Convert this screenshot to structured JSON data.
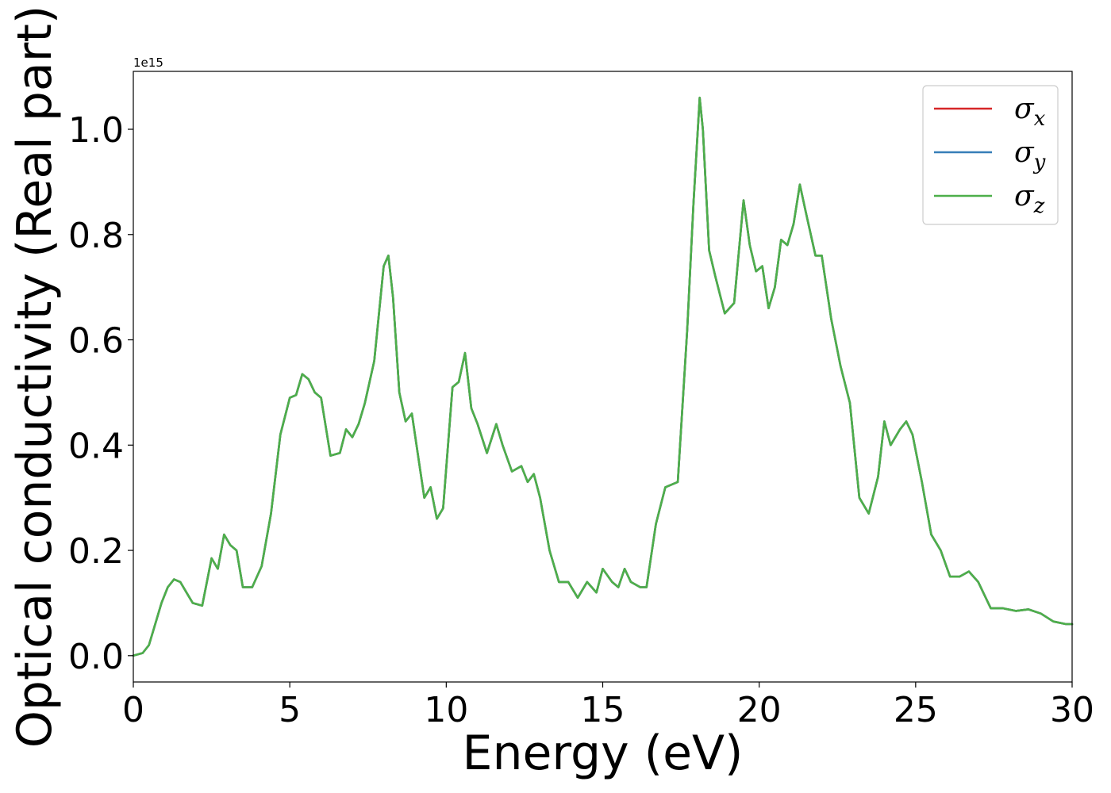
{
  "chart_data": {
    "type": "line",
    "xlabel": "Energy (eV)",
    "ylabel": "Optical conductivity (Real part)",
    "y_offset_label": "1e15",
    "xlim": [
      0,
      30
    ],
    "ylim": [
      -0.05,
      1.11
    ],
    "xticks": [
      0,
      5,
      10,
      15,
      20,
      25,
      30
    ],
    "xtick_labels": [
      "0",
      "5",
      "10",
      "15",
      "20",
      "25",
      "30"
    ],
    "yticks": [
      0.0,
      0.2,
      0.4,
      0.6,
      0.8,
      1.0
    ],
    "ytick_labels": [
      "0.0",
      "0.2",
      "0.4",
      "0.6",
      "0.8",
      "1.0"
    ],
    "grid": false,
    "legend_position": "upper right",
    "x": [
      0,
      0.3,
      0.5,
      0.7,
      0.9,
      1.1,
      1.3,
      1.5,
      1.7,
      1.9,
      2.2,
      2.5,
      2.7,
      2.9,
      3.1,
      3.3,
      3.5,
      3.8,
      4.1,
      4.4,
      4.7,
      5.0,
      5.2,
      5.4,
      5.6,
      5.8,
      6.0,
      6.3,
      6.6,
      6.8,
      7.0,
      7.2,
      7.4,
      7.7,
      8.0,
      8.15,
      8.3,
      8.5,
      8.7,
      8.9,
      9.1,
      9.3,
      9.5,
      9.7,
      9.9,
      10.2,
      10.4,
      10.6,
      10.8,
      11.0,
      11.3,
      11.6,
      11.8,
      12.1,
      12.4,
      12.6,
      12.8,
      13.0,
      13.3,
      13.6,
      13.9,
      14.2,
      14.5,
      14.8,
      15.0,
      15.3,
      15.5,
      15.7,
      15.9,
      16.2,
      16.4,
      16.7,
      17.0,
      17.4,
      17.7,
      17.9,
      18.1,
      18.2,
      18.4,
      18.6,
      18.9,
      19.2,
      19.5,
      19.7,
      19.9,
      20.1,
      20.3,
      20.5,
      20.7,
      20.9,
      21.1,
      21.3,
      21.5,
      21.8,
      22.0,
      22.3,
      22.6,
      22.9,
      23.2,
      23.5,
      23.8,
      24.0,
      24.2,
      24.5,
      24.7,
      24.9,
      25.2,
      25.5,
      25.8,
      26.1,
      26.4,
      26.7,
      27.0,
      27.4,
      27.8,
      28.2,
      28.6,
      29.0,
      29.4,
      29.8,
      30.0
    ],
    "series": [
      {
        "name": "σ_x",
        "color": "#d62728",
        "values": [
          0.0,
          0.005,
          0.02,
          0.06,
          0.1,
          0.13,
          0.145,
          0.14,
          0.12,
          0.1,
          0.095,
          0.185,
          0.165,
          0.23,
          0.21,
          0.2,
          0.13,
          0.13,
          0.17,
          0.27,
          0.42,
          0.49,
          0.495,
          0.535,
          0.525,
          0.5,
          0.49,
          0.38,
          0.385,
          0.43,
          0.415,
          0.44,
          0.48,
          0.56,
          0.74,
          0.76,
          0.68,
          0.5,
          0.445,
          0.46,
          0.38,
          0.3,
          0.32,
          0.26,
          0.28,
          0.51,
          0.52,
          0.575,
          0.47,
          0.44,
          0.385,
          0.44,
          0.4,
          0.35,
          0.36,
          0.33,
          0.345,
          0.3,
          0.2,
          0.14,
          0.14,
          0.11,
          0.14,
          0.12,
          0.165,
          0.14,
          0.13,
          0.165,
          0.14,
          0.13,
          0.13,
          0.25,
          0.32,
          0.33,
          0.62,
          0.86,
          1.06,
          1.0,
          0.77,
          0.72,
          0.65,
          0.67,
          0.865,
          0.78,
          0.73,
          0.74,
          0.66,
          0.7,
          0.79,
          0.78,
          0.82,
          0.895,
          0.84,
          0.76,
          0.76,
          0.64,
          0.55,
          0.48,
          0.3,
          0.27,
          0.34,
          0.445,
          0.4,
          0.43,
          0.445,
          0.42,
          0.33,
          0.23,
          0.2,
          0.15,
          0.15,
          0.16,
          0.14,
          0.09,
          0.09,
          0.085,
          0.088,
          0.08,
          0.065,
          0.06,
          0.06
        ]
      },
      {
        "name": "σ_y",
        "color": "#377eb8",
        "values": [
          0.0,
          0.005,
          0.02,
          0.06,
          0.1,
          0.13,
          0.145,
          0.14,
          0.12,
          0.1,
          0.095,
          0.185,
          0.165,
          0.23,
          0.21,
          0.2,
          0.13,
          0.13,
          0.17,
          0.27,
          0.42,
          0.49,
          0.495,
          0.535,
          0.525,
          0.5,
          0.49,
          0.38,
          0.385,
          0.43,
          0.415,
          0.44,
          0.48,
          0.56,
          0.74,
          0.76,
          0.68,
          0.5,
          0.445,
          0.46,
          0.38,
          0.3,
          0.32,
          0.26,
          0.28,
          0.51,
          0.52,
          0.575,
          0.47,
          0.44,
          0.385,
          0.44,
          0.4,
          0.35,
          0.36,
          0.33,
          0.345,
          0.3,
          0.2,
          0.14,
          0.14,
          0.11,
          0.14,
          0.12,
          0.165,
          0.14,
          0.13,
          0.165,
          0.14,
          0.13,
          0.13,
          0.25,
          0.32,
          0.33,
          0.62,
          0.86,
          1.06,
          1.0,
          0.77,
          0.72,
          0.65,
          0.67,
          0.865,
          0.78,
          0.73,
          0.74,
          0.66,
          0.7,
          0.79,
          0.78,
          0.82,
          0.895,
          0.84,
          0.76,
          0.76,
          0.64,
          0.55,
          0.48,
          0.3,
          0.27,
          0.34,
          0.445,
          0.4,
          0.43,
          0.445,
          0.42,
          0.33,
          0.23,
          0.2,
          0.15,
          0.15,
          0.16,
          0.14,
          0.09,
          0.09,
          0.085,
          0.088,
          0.08,
          0.065,
          0.06,
          0.06
        ]
      },
      {
        "name": "σ_z",
        "color": "#4daf4a",
        "values": [
          0.0,
          0.005,
          0.02,
          0.06,
          0.1,
          0.13,
          0.145,
          0.14,
          0.12,
          0.1,
          0.095,
          0.185,
          0.165,
          0.23,
          0.21,
          0.2,
          0.13,
          0.13,
          0.17,
          0.27,
          0.42,
          0.49,
          0.495,
          0.535,
          0.525,
          0.5,
          0.49,
          0.38,
          0.385,
          0.43,
          0.415,
          0.44,
          0.48,
          0.56,
          0.74,
          0.76,
          0.68,
          0.5,
          0.445,
          0.46,
          0.38,
          0.3,
          0.32,
          0.26,
          0.28,
          0.51,
          0.52,
          0.575,
          0.47,
          0.44,
          0.385,
          0.44,
          0.4,
          0.35,
          0.36,
          0.33,
          0.345,
          0.3,
          0.2,
          0.14,
          0.14,
          0.11,
          0.14,
          0.12,
          0.165,
          0.14,
          0.13,
          0.165,
          0.14,
          0.13,
          0.13,
          0.25,
          0.32,
          0.33,
          0.62,
          0.86,
          1.06,
          1.0,
          0.77,
          0.72,
          0.65,
          0.67,
          0.865,
          0.78,
          0.73,
          0.74,
          0.66,
          0.7,
          0.79,
          0.78,
          0.82,
          0.895,
          0.84,
          0.76,
          0.76,
          0.64,
          0.55,
          0.48,
          0.3,
          0.27,
          0.34,
          0.445,
          0.4,
          0.43,
          0.445,
          0.42,
          0.33,
          0.23,
          0.2,
          0.15,
          0.15,
          0.16,
          0.14,
          0.09,
          0.09,
          0.085,
          0.088,
          0.08,
          0.065,
          0.06,
          0.06
        ]
      }
    ],
    "legend": [
      {
        "base": "σ",
        "sub": "x",
        "color": "#d62728"
      },
      {
        "base": "σ",
        "sub": "y",
        "color": "#377eb8"
      },
      {
        "base": "σ",
        "sub": "z",
        "color": "#4daf4a"
      }
    ]
  }
}
